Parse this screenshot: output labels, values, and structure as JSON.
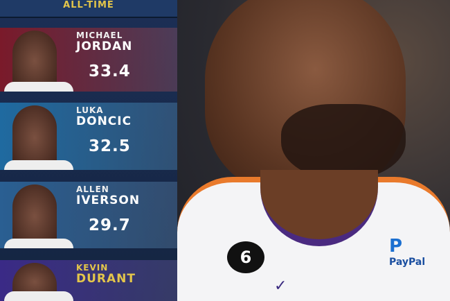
{
  "header": {
    "title": "ALL-TIME"
  },
  "players": [
    {
      "first": "MICHAEL",
      "last": "JORDAN",
      "value": "33.4",
      "bg": "#7a1a2a"
    },
    {
      "first": "LUKA",
      "last": "DONCIC",
      "value": "32.5",
      "bg": "#1f6aa0"
    },
    {
      "first": "ALLEN",
      "last": "IVERSON",
      "value": "29.7",
      "bg": "#2a5f92"
    },
    {
      "first": "KEVIN",
      "last": "DURANT",
      "value": "",
      "bg": "#3a2a86"
    }
  ],
  "photo": {
    "jersey_badge": "6",
    "sponsor": "PayPal",
    "sponsor_logo": "P"
  }
}
